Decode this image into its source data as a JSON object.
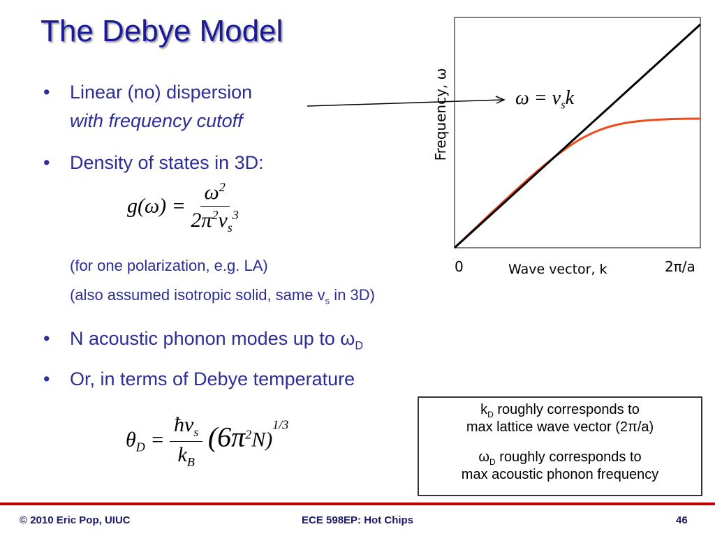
{
  "title": "The Debye Model",
  "bullets": [
    {
      "text": "Linear (no) dispersion",
      "sub": "with frequency cutoff"
    },
    {
      "text": "Density of states in 3D:"
    },
    {
      "text": "N acoustic phonon modes up to ω",
      "sub_script": "D"
    },
    {
      "text": "Or, in terms of Debye temperature"
    }
  ],
  "dos_equation": {
    "lhs": "g(ω) =",
    "numerator": "ω",
    "numerator_exp": "2",
    "denominator": [
      "2π",
      "2",
      "v",
      "s",
      "3"
    ]
  },
  "notes": [
    "(for one polarization, e.g. LA)",
    [
      "(also assumed isotropic solid, same v",
      "s",
      " in 3D)"
    ]
  ],
  "debye_equation": {
    "lhs": [
      "θ",
      "D"
    ],
    "equals": "=",
    "numerator": [
      "ħv",
      "s"
    ],
    "denominator": [
      "k",
      "B"
    ],
    "factor": [
      "(6π",
      "2",
      "N)",
      "1/3"
    ]
  },
  "plot": {
    "equation": [
      "ω = v",
      "s",
      "k"
    ],
    "y_label": "Frequency, ω",
    "x_label": "Wave vector, k",
    "x_start": "0",
    "x_end": "2π/a"
  },
  "box": [
    [
      "k",
      "D",
      " roughly corresponds to",
      "max lattice wave vector (2π/a)"
    ],
    [
      "ω",
      "D",
      " roughly corresponds to",
      "max acoustic phonon frequency"
    ]
  ],
  "footer": {
    "left": "© 2010 Eric Pop, UIUC",
    "center": "ECE 598EP: Hot Chips",
    "right": "46"
  }
}
